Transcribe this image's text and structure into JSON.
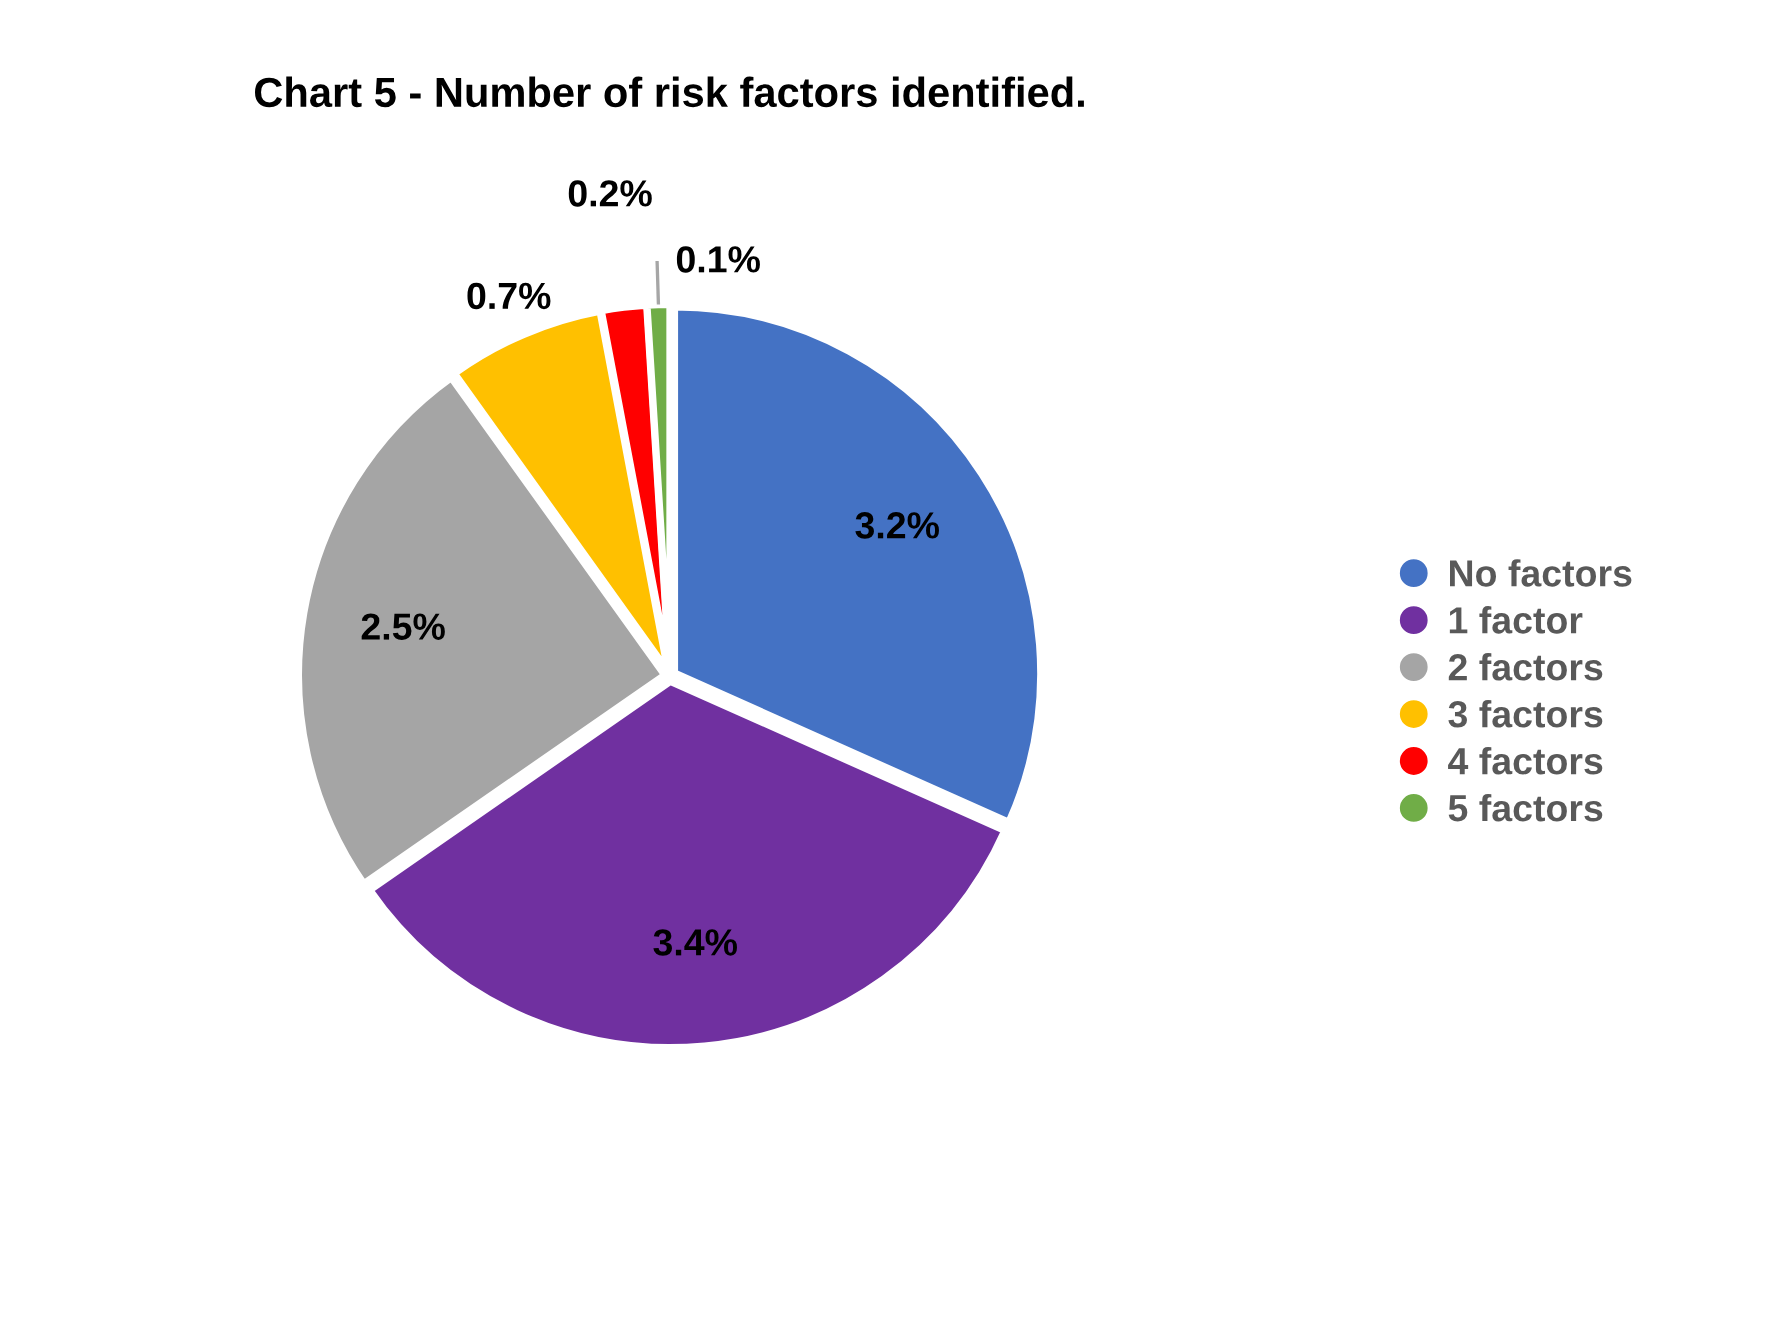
{
  "chart_data": {
    "type": "pie",
    "title": "Chart 5 - Number of risk factors identified.",
    "categories": [
      "No factors",
      "1 factor",
      "2 factors",
      "3 factors",
      "4 factors",
      "5 factors"
    ],
    "values": [
      3.2,
      3.4,
      2.5,
      0.7,
      0.2,
      0.1
    ],
    "colors": [
      "#4472c4",
      "#7030a0",
      "#a5a5a5",
      "#ffc000",
      "#ff0000",
      "#70ad47"
    ],
    "value_labels": [
      "3.2%",
      "3.4%",
      "2.5%",
      "0.7%",
      "0.2%",
      "0.1%"
    ],
    "legend": "right"
  }
}
